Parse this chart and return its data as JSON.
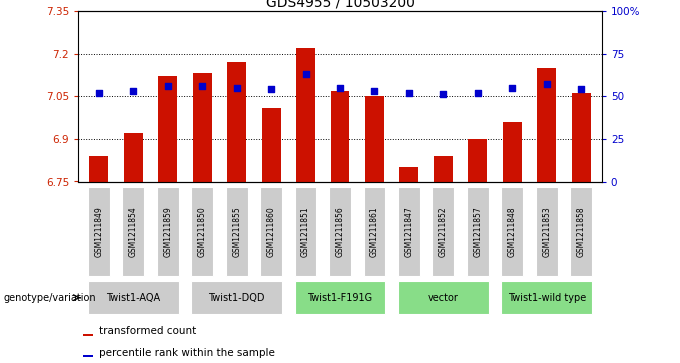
{
  "title": "GDS4955 / 10503200",
  "samples": [
    "GSM1211849",
    "GSM1211854",
    "GSM1211859",
    "GSM1211850",
    "GSM1211855",
    "GSM1211860",
    "GSM1211851",
    "GSM1211856",
    "GSM1211861",
    "GSM1211847",
    "GSM1211852",
    "GSM1211857",
    "GSM1211848",
    "GSM1211853",
    "GSM1211858"
  ],
  "bar_values": [
    6.84,
    6.92,
    7.12,
    7.13,
    7.17,
    7.01,
    7.22,
    7.07,
    7.05,
    6.8,
    6.84,
    6.9,
    6.96,
    7.15,
    7.06
  ],
  "percentile_values": [
    52,
    53,
    56,
    56,
    55,
    54,
    63,
    55,
    53,
    52,
    51,
    52,
    55,
    57,
    54
  ],
  "groups": [
    {
      "label": "Twist1-AQA",
      "start": 0,
      "end": 3,
      "color": "#cccccc"
    },
    {
      "label": "Twist1-DQD",
      "start": 3,
      "end": 6,
      "color": "#cccccc"
    },
    {
      "label": "Twist1-F191G",
      "start": 6,
      "end": 9,
      "color": "#88dd88"
    },
    {
      "label": "vector",
      "start": 9,
      "end": 12,
      "color": "#88dd88"
    },
    {
      "label": "Twist1-wild type",
      "start": 12,
      "end": 15,
      "color": "#88dd88"
    }
  ],
  "bar_color": "#cc1100",
  "dot_color": "#0000cc",
  "ylim_left": [
    6.75,
    7.35
  ],
  "ylim_right": [
    0,
    100
  ],
  "yticks_left": [
    6.75,
    6.9,
    7.05,
    7.2,
    7.35
  ],
  "yticks_right": [
    0,
    25,
    50,
    75,
    100
  ],
  "ytick_labels_right": [
    "0",
    "25",
    "50",
    "75",
    "100%"
  ],
  "grid_vals": [
    6.9,
    7.05,
    7.2
  ],
  "bar_width": 0.55,
  "genotype_label": "genotype/variation"
}
